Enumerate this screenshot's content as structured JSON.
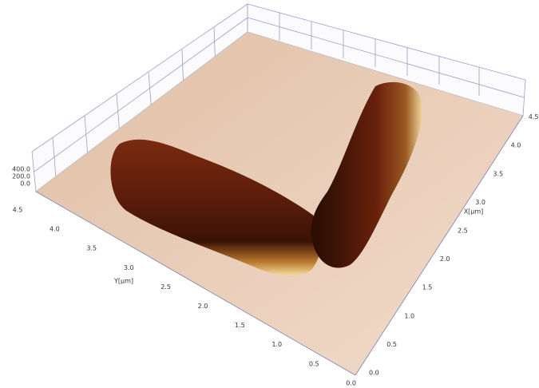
{
  "axes": {
    "y_label": "Y[µm]",
    "x_label": "X[µm]",
    "y_ticks": [
      "4.5",
      "4.0",
      "3.5",
      "3.0",
      "2.5",
      "2.0",
      "1.5",
      "1.0",
      "0.5",
      "0.0"
    ],
    "x_ticks": [
      "0.0",
      "0.5",
      "1.0",
      "1.5",
      "2.0",
      "2.5",
      "3.0",
      "3.5",
      "4.0",
      "4.5"
    ],
    "z_ticks": [
      "400.0",
      "200.0",
      "0.0"
    ]
  }
}
